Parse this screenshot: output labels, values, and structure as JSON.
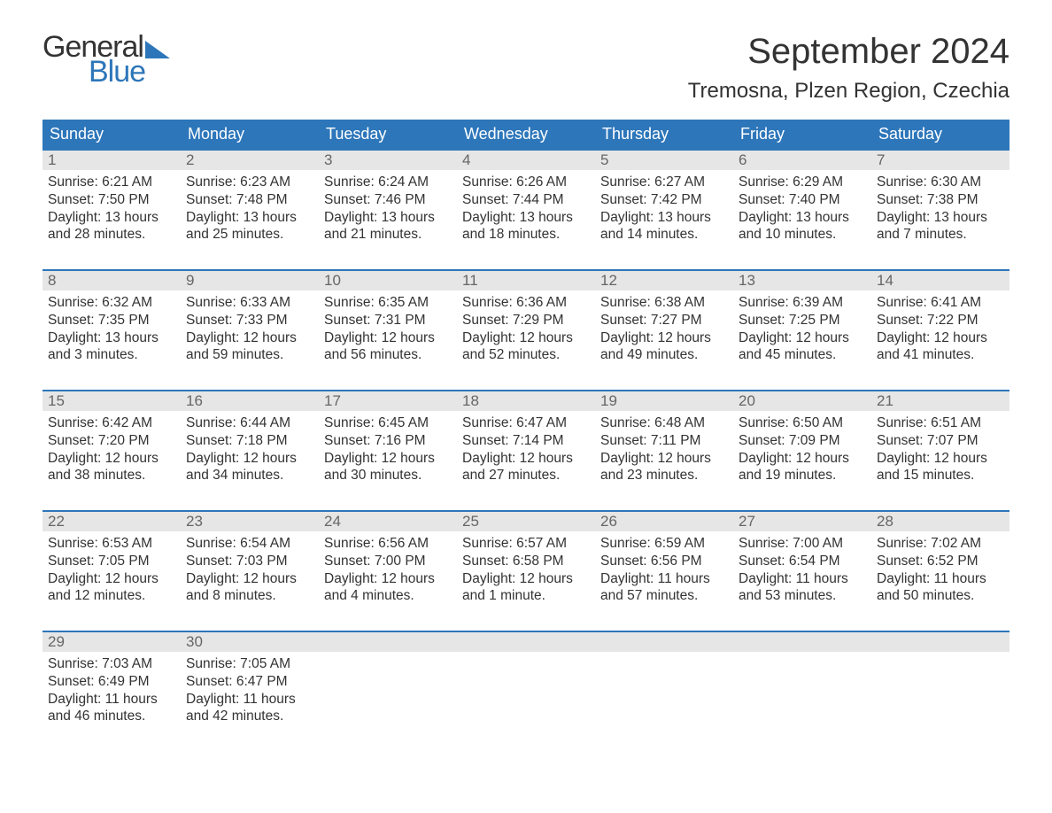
{
  "brand": {
    "general": "General",
    "blue": "Blue"
  },
  "title": "September 2024",
  "location": "Tremosna, Plzen Region, Czechia",
  "colors": {
    "primary": "#2d76ba",
    "header_text": "#ffffff",
    "daynum_bg": "#e6e6e6",
    "daynum_text": "#666666",
    "body_text": "#333333",
    "background": "#ffffff"
  },
  "layout": {
    "columns": 7,
    "rows": 5
  },
  "days_of_week": [
    "Sunday",
    "Monday",
    "Tuesday",
    "Wednesday",
    "Thursday",
    "Friday",
    "Saturday"
  ],
  "weeks": [
    [
      {
        "n": "1",
        "sunrise": "Sunrise: 6:21 AM",
        "sunset": "Sunset: 7:50 PM",
        "dl1": "Daylight: 13 hours",
        "dl2": "and 28 minutes."
      },
      {
        "n": "2",
        "sunrise": "Sunrise: 6:23 AM",
        "sunset": "Sunset: 7:48 PM",
        "dl1": "Daylight: 13 hours",
        "dl2": "and 25 minutes."
      },
      {
        "n": "3",
        "sunrise": "Sunrise: 6:24 AM",
        "sunset": "Sunset: 7:46 PM",
        "dl1": "Daylight: 13 hours",
        "dl2": "and 21 minutes."
      },
      {
        "n": "4",
        "sunrise": "Sunrise: 6:26 AM",
        "sunset": "Sunset: 7:44 PM",
        "dl1": "Daylight: 13 hours",
        "dl2": "and 18 minutes."
      },
      {
        "n": "5",
        "sunrise": "Sunrise: 6:27 AM",
        "sunset": "Sunset: 7:42 PM",
        "dl1": "Daylight: 13 hours",
        "dl2": "and 14 minutes."
      },
      {
        "n": "6",
        "sunrise": "Sunrise: 6:29 AM",
        "sunset": "Sunset: 7:40 PM",
        "dl1": "Daylight: 13 hours",
        "dl2": "and 10 minutes."
      },
      {
        "n": "7",
        "sunrise": "Sunrise: 6:30 AM",
        "sunset": "Sunset: 7:38 PM",
        "dl1": "Daylight: 13 hours",
        "dl2": "and 7 minutes."
      }
    ],
    [
      {
        "n": "8",
        "sunrise": "Sunrise: 6:32 AM",
        "sunset": "Sunset: 7:35 PM",
        "dl1": "Daylight: 13 hours",
        "dl2": "and 3 minutes."
      },
      {
        "n": "9",
        "sunrise": "Sunrise: 6:33 AM",
        "sunset": "Sunset: 7:33 PM",
        "dl1": "Daylight: 12 hours",
        "dl2": "and 59 minutes."
      },
      {
        "n": "10",
        "sunrise": "Sunrise: 6:35 AM",
        "sunset": "Sunset: 7:31 PM",
        "dl1": "Daylight: 12 hours",
        "dl2": "and 56 minutes."
      },
      {
        "n": "11",
        "sunrise": "Sunrise: 6:36 AM",
        "sunset": "Sunset: 7:29 PM",
        "dl1": "Daylight: 12 hours",
        "dl2": "and 52 minutes."
      },
      {
        "n": "12",
        "sunrise": "Sunrise: 6:38 AM",
        "sunset": "Sunset: 7:27 PM",
        "dl1": "Daylight: 12 hours",
        "dl2": "and 49 minutes."
      },
      {
        "n": "13",
        "sunrise": "Sunrise: 6:39 AM",
        "sunset": "Sunset: 7:25 PM",
        "dl1": "Daylight: 12 hours",
        "dl2": "and 45 minutes."
      },
      {
        "n": "14",
        "sunrise": "Sunrise: 6:41 AM",
        "sunset": "Sunset: 7:22 PM",
        "dl1": "Daylight: 12 hours",
        "dl2": "and 41 minutes."
      }
    ],
    [
      {
        "n": "15",
        "sunrise": "Sunrise: 6:42 AM",
        "sunset": "Sunset: 7:20 PM",
        "dl1": "Daylight: 12 hours",
        "dl2": "and 38 minutes."
      },
      {
        "n": "16",
        "sunrise": "Sunrise: 6:44 AM",
        "sunset": "Sunset: 7:18 PM",
        "dl1": "Daylight: 12 hours",
        "dl2": "and 34 minutes."
      },
      {
        "n": "17",
        "sunrise": "Sunrise: 6:45 AM",
        "sunset": "Sunset: 7:16 PM",
        "dl1": "Daylight: 12 hours",
        "dl2": "and 30 minutes."
      },
      {
        "n": "18",
        "sunrise": "Sunrise: 6:47 AM",
        "sunset": "Sunset: 7:14 PM",
        "dl1": "Daylight: 12 hours",
        "dl2": "and 27 minutes."
      },
      {
        "n": "19",
        "sunrise": "Sunrise: 6:48 AM",
        "sunset": "Sunset: 7:11 PM",
        "dl1": "Daylight: 12 hours",
        "dl2": "and 23 minutes."
      },
      {
        "n": "20",
        "sunrise": "Sunrise: 6:50 AM",
        "sunset": "Sunset: 7:09 PM",
        "dl1": "Daylight: 12 hours",
        "dl2": "and 19 minutes."
      },
      {
        "n": "21",
        "sunrise": "Sunrise: 6:51 AM",
        "sunset": "Sunset: 7:07 PM",
        "dl1": "Daylight: 12 hours",
        "dl2": "and 15 minutes."
      }
    ],
    [
      {
        "n": "22",
        "sunrise": "Sunrise: 6:53 AM",
        "sunset": "Sunset: 7:05 PM",
        "dl1": "Daylight: 12 hours",
        "dl2": "and 12 minutes."
      },
      {
        "n": "23",
        "sunrise": "Sunrise: 6:54 AM",
        "sunset": "Sunset: 7:03 PM",
        "dl1": "Daylight: 12 hours",
        "dl2": "and 8 minutes."
      },
      {
        "n": "24",
        "sunrise": "Sunrise: 6:56 AM",
        "sunset": "Sunset: 7:00 PM",
        "dl1": "Daylight: 12 hours",
        "dl2": "and 4 minutes."
      },
      {
        "n": "25",
        "sunrise": "Sunrise: 6:57 AM",
        "sunset": "Sunset: 6:58 PM",
        "dl1": "Daylight: 12 hours",
        "dl2": "and 1 minute."
      },
      {
        "n": "26",
        "sunrise": "Sunrise: 6:59 AM",
        "sunset": "Sunset: 6:56 PM",
        "dl1": "Daylight: 11 hours",
        "dl2": "and 57 minutes."
      },
      {
        "n": "27",
        "sunrise": "Sunrise: 7:00 AM",
        "sunset": "Sunset: 6:54 PM",
        "dl1": "Daylight: 11 hours",
        "dl2": "and 53 minutes."
      },
      {
        "n": "28",
        "sunrise": "Sunrise: 7:02 AM",
        "sunset": "Sunset: 6:52 PM",
        "dl1": "Daylight: 11 hours",
        "dl2": "and 50 minutes."
      }
    ],
    [
      {
        "n": "29",
        "sunrise": "Sunrise: 7:03 AM",
        "sunset": "Sunset: 6:49 PM",
        "dl1": "Daylight: 11 hours",
        "dl2": "and 46 minutes."
      },
      {
        "n": "30",
        "sunrise": "Sunrise: 7:05 AM",
        "sunset": "Sunset: 6:47 PM",
        "dl1": "Daylight: 11 hours",
        "dl2": "and 42 minutes."
      },
      {
        "n": "",
        "sunrise": "",
        "sunset": "",
        "dl1": "",
        "dl2": ""
      },
      {
        "n": "",
        "sunrise": "",
        "sunset": "",
        "dl1": "",
        "dl2": ""
      },
      {
        "n": "",
        "sunrise": "",
        "sunset": "",
        "dl1": "",
        "dl2": ""
      },
      {
        "n": "",
        "sunrise": "",
        "sunset": "",
        "dl1": "",
        "dl2": ""
      },
      {
        "n": "",
        "sunrise": "",
        "sunset": "",
        "dl1": "",
        "dl2": ""
      }
    ]
  ]
}
